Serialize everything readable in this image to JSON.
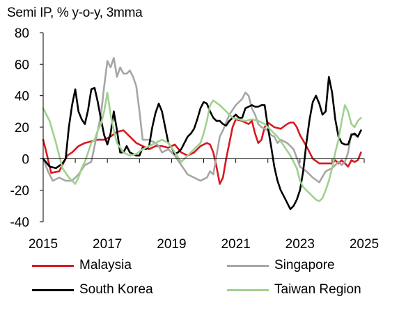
{
  "chart_data": {
    "type": "line",
    "title": "Semi IP, % y-o-y, 3mma",
    "xlabel": "",
    "ylabel": "",
    "xlim": [
      2015.0,
      2025.0
    ],
    "ylim": [
      -40,
      80
    ],
    "yticks": [
      80,
      60,
      40,
      20,
      0,
      -20,
      -40
    ],
    "xticks": [
      "2015",
      "2017",
      "2019",
      "2021",
      "2023",
      "2025"
    ],
    "grid": false,
    "legend_position": "bottom",
    "series": [
      {
        "name": "Malaysia",
        "color": "#d71920",
        "x": [
          2015.0,
          2015.1,
          2015.25,
          2015.5,
          2015.75,
          2015.9,
          2016.1,
          2016.3,
          2016.5,
          2016.7,
          2016.9,
          2017.1,
          2017.3,
          2017.5,
          2017.7,
          2017.9,
          2018.1,
          2018.3,
          2018.5,
          2018.7,
          2018.9,
          2019.1,
          2019.3,
          2019.5,
          2019.7,
          2019.9,
          2020.1,
          2020.2,
          2020.3,
          2020.4,
          2020.5,
          2020.6,
          2020.7,
          2020.8,
          2020.9,
          2021.0,
          2021.2,
          2021.4,
          2021.5,
          2021.6,
          2021.7,
          2021.8,
          2021.9,
          2022.0,
          2022.2,
          2022.4,
          2022.6,
          2022.7,
          2022.8,
          2022.9,
          2023.0,
          2023.2,
          2023.4,
          2023.6,
          2023.8,
          2024.0,
          2024.1,
          2024.2,
          2024.3,
          2024.4,
          2024.5,
          2024.6,
          2024.7,
          2024.8,
          2024.9
        ],
        "values": [
          12,
          4,
          -9,
          -8,
          2,
          4,
          8,
          10,
          11,
          12,
          12,
          14,
          17,
          18,
          14,
          10,
          8,
          6,
          8,
          8,
          7,
          9,
          4,
          2,
          4,
          8,
          10,
          9,
          4,
          -5,
          -16,
          -12,
          0,
          10,
          20,
          25,
          24,
          22,
          24,
          16,
          10,
          12,
          20,
          23,
          20,
          19,
          22,
          23,
          23,
          20,
          15,
          8,
          0,
          -3,
          -3,
          -3,
          -1,
          -3,
          -1,
          -3,
          -5,
          -1,
          -2,
          -1,
          4
        ]
      },
      {
        "name": "Singapore",
        "color": "#a6a6a6",
        "x": [
          2015.0,
          2015.15,
          2015.3,
          2015.5,
          2015.7,
          2015.9,
          2016.1,
          2016.3,
          2016.5,
          2016.6,
          2016.7,
          2016.8,
          2016.9,
          2017.0,
          2017.1,
          2017.2,
          2017.3,
          2017.4,
          2017.5,
          2017.6,
          2017.7,
          2017.8,
          2017.9,
          2018.0,
          2018.1,
          2018.3,
          2018.5,
          2018.6,
          2018.7,
          2018.9,
          2019.1,
          2019.3,
          2019.5,
          2019.7,
          2019.9,
          2020.1,
          2020.2,
          2020.3,
          2020.5,
          2020.6,
          2020.8,
          2021.0,
          2021.2,
          2021.3,
          2021.4,
          2021.5,
          2021.6,
          2021.7,
          2021.8,
          2022.0,
          2022.1,
          2022.2,
          2022.3,
          2022.4,
          2022.6,
          2022.8,
          2023.0,
          2023.2,
          2023.4,
          2023.6,
          2023.8,
          2024.0,
          2024.1,
          2024.2,
          2024.3,
          2024.4,
          2024.5,
          2024.6,
          2024.8,
          2024.9
        ],
        "values": [
          0,
          -8,
          -14,
          -12,
          -14,
          -14,
          -10,
          -4,
          -2,
          8,
          18,
          28,
          46,
          62,
          58,
          64,
          52,
          58,
          54,
          54,
          56,
          52,
          46,
          30,
          12,
          12,
          10,
          8,
          4,
          6,
          2,
          -4,
          -10,
          -12,
          -14,
          -12,
          -8,
          -10,
          14,
          18,
          28,
          34,
          38,
          42,
          40,
          32,
          28,
          22,
          20,
          18,
          15,
          14,
          10,
          12,
          10,
          6,
          -5,
          -8,
          -12,
          -15,
          -8,
          -6,
          -4,
          -2,
          -4,
          -2,
          4,
          16,
          14,
          18
        ]
      },
      {
        "name": "South Korea",
        "color": "#000000",
        "x": [
          2015.0,
          2015.2,
          2015.4,
          2015.6,
          2015.7,
          2015.8,
          2015.9,
          2016.0,
          2016.1,
          2016.2,
          2016.3,
          2016.4,
          2016.5,
          2016.6,
          2016.7,
          2016.8,
          2016.9,
          2017.0,
          2017.1,
          2017.2,
          2017.3,
          2017.4,
          2017.5,
          2017.6,
          2017.7,
          2017.8,
          2017.9,
          2018.0,
          2018.1,
          2018.2,
          2018.3,
          2018.4,
          2018.5,
          2018.6,
          2018.7,
          2018.8,
          2018.9,
          2019.0,
          2019.1,
          2019.2,
          2019.3,
          2019.4,
          2019.5,
          2019.6,
          2019.7,
          2019.8,
          2019.9,
          2020.0,
          2020.1,
          2020.2,
          2020.3,
          2020.4,
          2020.5,
          2020.6,
          2020.7,
          2020.8,
          2020.9,
          2021.0,
          2021.1,
          2021.2,
          2021.3,
          2021.4,
          2021.5,
          2021.6,
          2021.7,
          2021.8,
          2021.9,
          2022.0,
          2022.1,
          2022.2,
          2022.3,
          2022.4,
          2022.5,
          2022.6,
          2022.7,
          2022.8,
          2022.9,
          2023.0,
          2023.1,
          2023.2,
          2023.3,
          2023.4,
          2023.5,
          2023.6,
          2023.7,
          2023.8,
          2023.9,
          2024.0,
          2024.1,
          2024.2,
          2024.3,
          2024.4,
          2024.5,
          2024.6,
          2024.7,
          2024.8,
          2024.9
        ],
        "values": [
          0,
          -5,
          -6,
          -3,
          0,
          20,
          34,
          44,
          30,
          25,
          22,
          31,
          44,
          45,
          36,
          25,
          15,
          9,
          16,
          30,
          18,
          4,
          4,
          8,
          4,
          3,
          2,
          2,
          7,
          6,
          8,
          20,
          29,
          35,
          30,
          20,
          10,
          7,
          3,
          4,
          6,
          10,
          14,
          16,
          19,
          25,
          32,
          36,
          35,
          30,
          26,
          24,
          24,
          22,
          21,
          24,
          26,
          28,
          26,
          26,
          32,
          33,
          34,
          33,
          33,
          34,
          34,
          20,
          8,
          -5,
          -14,
          -20,
          -24,
          -28,
          -32,
          -30,
          -26,
          -20,
          -8,
          10,
          25,
          36,
          40,
          35,
          28,
          30,
          52,
          42,
          25,
          14,
          10,
          9,
          9,
          15,
          16,
          14,
          18
        ]
      },
      {
        "name": "Taiwan Region",
        "color": "#9fd18f",
        "x": [
          2015.0,
          2015.2,
          2015.4,
          2015.6,
          2015.8,
          2016.0,
          2016.1,
          2016.2,
          2016.3,
          2016.4,
          2016.5,
          2016.6,
          2016.7,
          2016.8,
          2016.9,
          2017.0,
          2017.1,
          2017.2,
          2017.3,
          2017.5,
          2017.7,
          2017.9,
          2018.1,
          2018.3,
          2018.5,
          2018.7,
          2018.9,
          2019.1,
          2019.3,
          2019.5,
          2019.7,
          2019.9,
          2020.0,
          2020.1,
          2020.2,
          2020.3,
          2020.5,
          2020.7,
          2020.9,
          2021.1,
          2021.3,
          2021.5,
          2021.7,
          2021.9,
          2022.1,
          2022.3,
          2022.5,
          2022.7,
          2022.9,
          2023.0,
          2023.1,
          2023.2,
          2023.3,
          2023.4,
          2023.5,
          2023.6,
          2023.7,
          2023.8,
          2023.9,
          2024.0,
          2024.1,
          2024.2,
          2024.3,
          2024.4,
          2024.5,
          2024.6,
          2024.7,
          2024.8,
          2024.9
        ],
        "values": [
          32,
          24,
          10,
          -6,
          -12,
          -16,
          -12,
          -6,
          -2,
          4,
          10,
          12,
          18,
          22,
          30,
          42,
          28,
          18,
          10,
          4,
          2,
          3,
          6,
          8,
          10,
          12,
          10,
          4,
          -2,
          2,
          6,
          10,
          16,
          24,
          34,
          37,
          34,
          30,
          26,
          25,
          24,
          25,
          24,
          22,
          18,
          14,
          8,
          2,
          -6,
          -14,
          -18,
          -20,
          -22,
          -24,
          -26,
          -27,
          -25,
          -20,
          -14,
          -6,
          4,
          12,
          24,
          34,
          30,
          22,
          20,
          24,
          26
        ]
      }
    ]
  }
}
